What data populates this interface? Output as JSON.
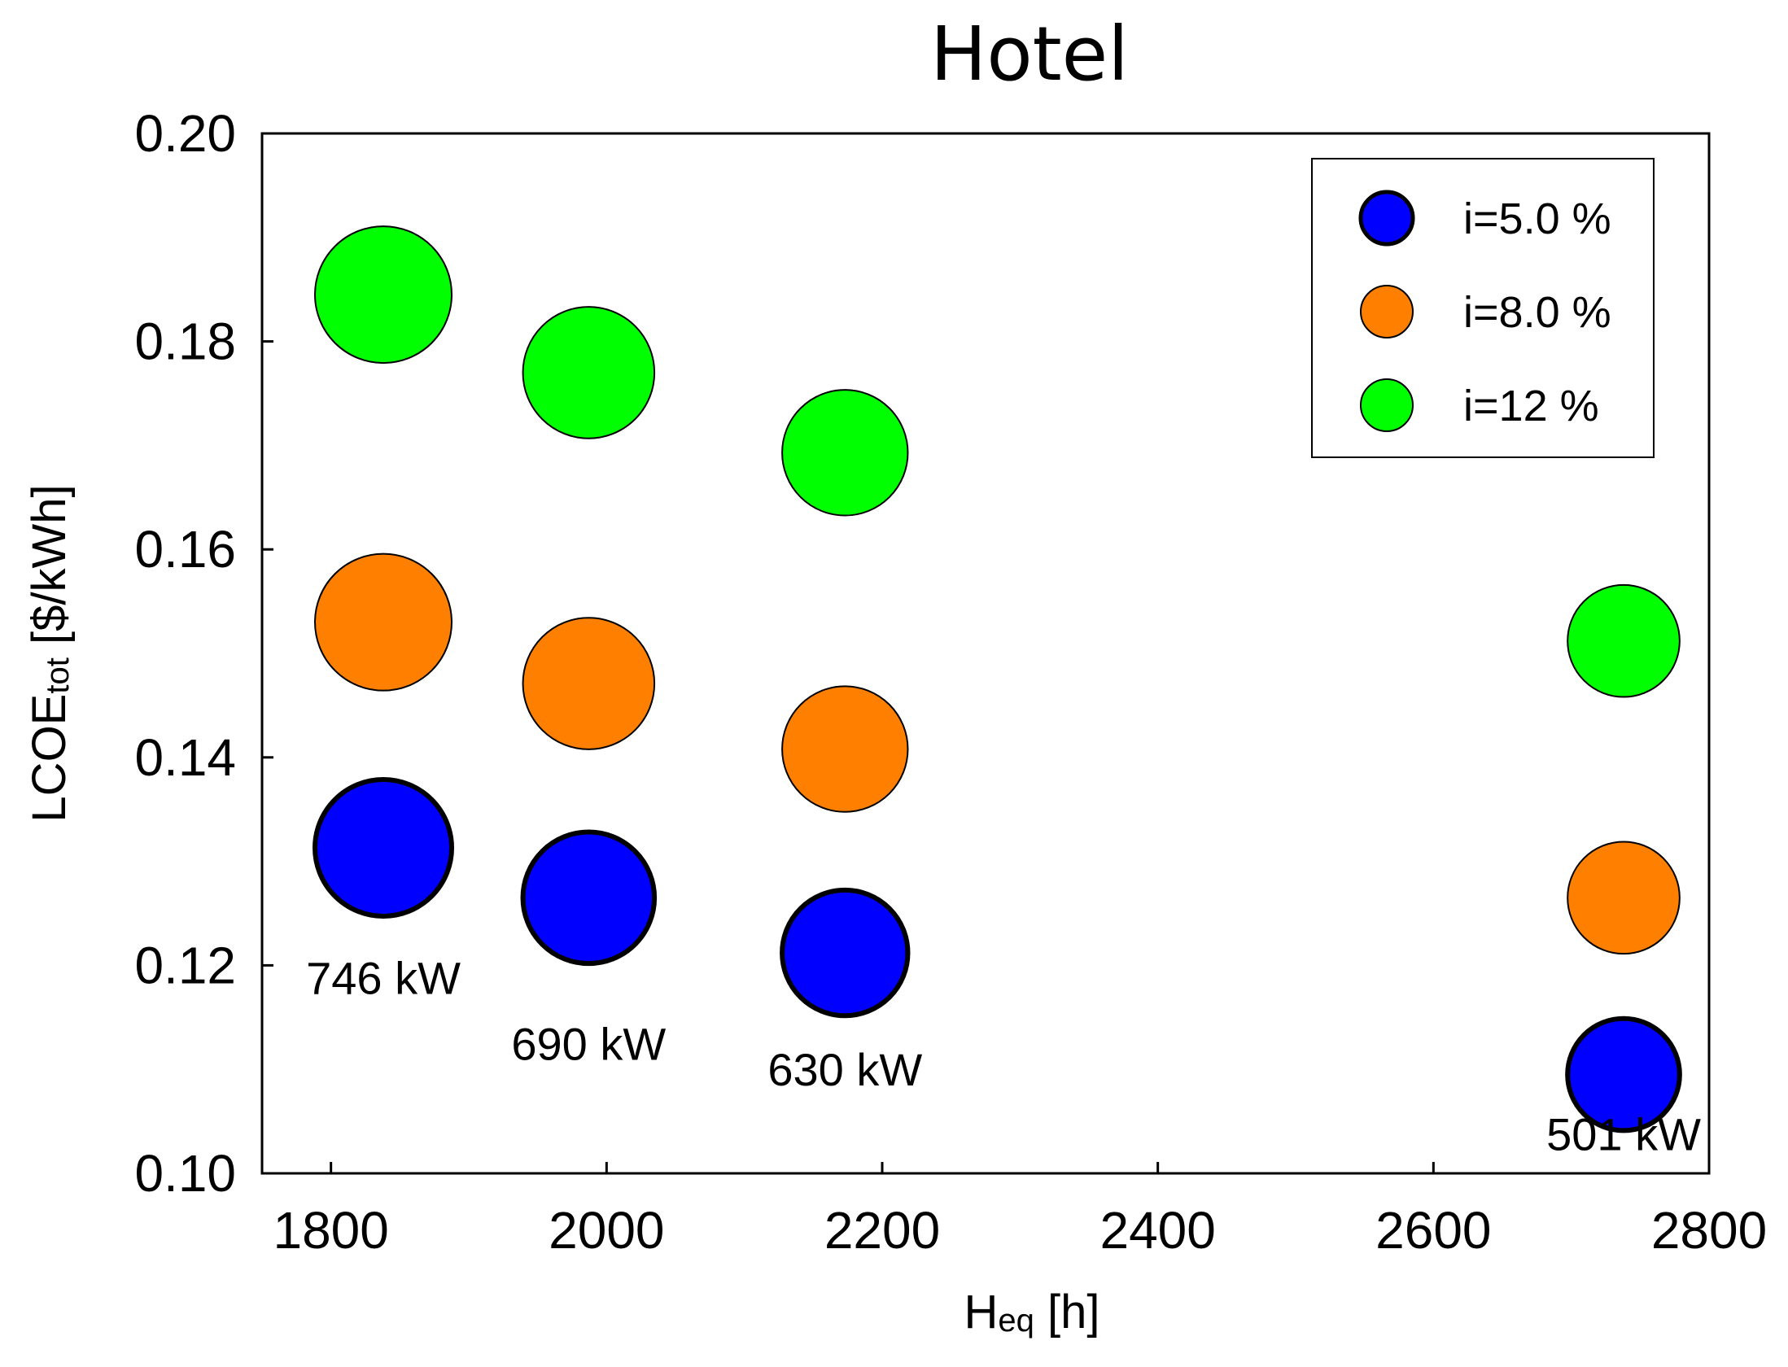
{
  "chart_data": {
    "type": "scatter",
    "title": "Hotel",
    "xlabel": {
      "main": "H",
      "sub": "eq",
      "rest": " [h]"
    },
    "ylabel": {
      "main": "LCOE",
      "sub": "tot",
      "rest": " [$/kWh]"
    },
    "xlim": [
      1750,
      2800
    ],
    "ylim": [
      0.1,
      0.2
    ],
    "xticks": [
      1800,
      2000,
      2200,
      2400,
      2600,
      2800
    ],
    "yticks": [
      0.1,
      0.12,
      0.14,
      0.16,
      0.18,
      0.2
    ],
    "ytick_labels": [
      "0.10",
      "0.12",
      "0.14",
      "0.16",
      "0.18",
      "0.20"
    ],
    "grid": false,
    "legend_position": "top-right",
    "series": [
      {
        "name": "i=5.0 %",
        "color": "#0000ff",
        "points": [
          {
            "x": 1838,
            "y": 0.1313,
            "size": 746
          },
          {
            "x": 1987,
            "y": 0.1265,
            "size": 690
          },
          {
            "x": 2173,
            "y": 0.1212,
            "size": 630
          },
          {
            "x": 2738,
            "y": 0.1095,
            "size": 501
          }
        ]
      },
      {
        "name": "i=8.0 %",
        "color": "#ff8000",
        "points": [
          {
            "x": 1838,
            "y": 0.153,
            "size": 746
          },
          {
            "x": 1987,
            "y": 0.1471,
            "size": 690
          },
          {
            "x": 2173,
            "y": 0.1408,
            "size": 630
          },
          {
            "x": 2738,
            "y": 0.1265,
            "size": 501
          }
        ]
      },
      {
        "name": "i=12 %",
        "color": "#00ff00",
        "points": [
          {
            "x": 1838,
            "y": 0.1845,
            "size": 746
          },
          {
            "x": 1987,
            "y": 0.177,
            "size": 690
          },
          {
            "x": 2173,
            "y": 0.1693,
            "size": 630
          },
          {
            "x": 2738,
            "y": 0.1512,
            "size": 501
          }
        ]
      }
    ],
    "annotations": [
      {
        "text": "746 kW",
        "x": 1838,
        "y": 0.1188
      },
      {
        "text": "690 kW",
        "x": 1987,
        "y": 0.1125
      },
      {
        "text": "630 kW",
        "x": 2173,
        "y": 0.11
      },
      {
        "text": "501 kW",
        "x": 2738,
        "y": 0.1038
      }
    ]
  }
}
